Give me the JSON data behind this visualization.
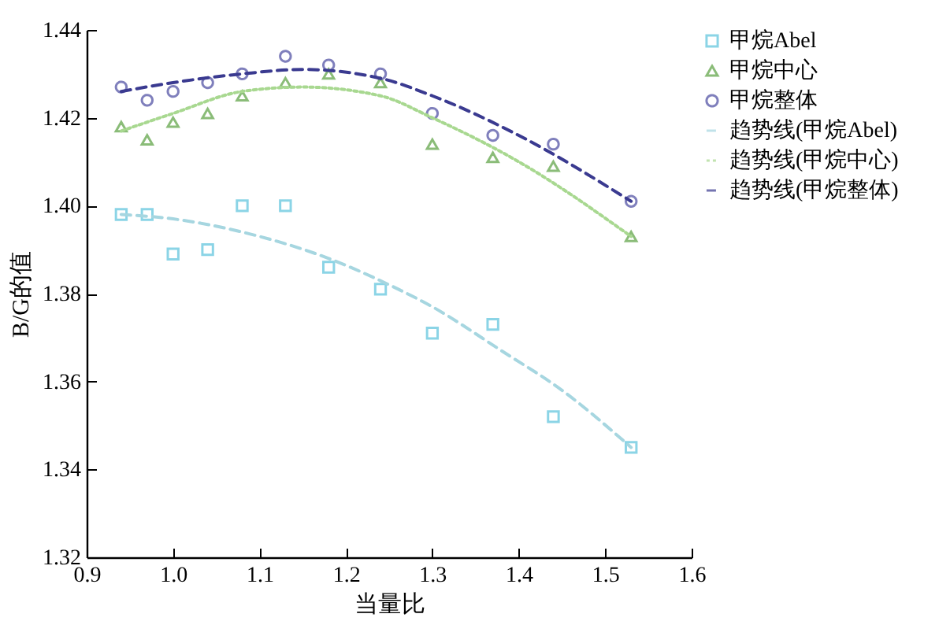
{
  "chart_data": {
    "type": "scatter",
    "xlabel": "当量比",
    "ylabel": "B/G的值",
    "xlim": [
      0.9,
      1.6
    ],
    "ylim": [
      1.32,
      1.44
    ],
    "xticks": [
      0.9,
      {
        "value": 1,
        "label": "1.0"
      },
      1.1,
      1.2,
      1.3,
      1.4,
      1.5,
      1.6
    ],
    "yticks": [
      1.32,
      1.34,
      1.36,
      1.38,
      {
        "value": 1.4,
        "label": "1.40"
      },
      1.42,
      1.44
    ],
    "grid": false,
    "legend": "right",
    "series": [
      {
        "name": "甲烷Abel",
        "type": "scatter",
        "marker": "square",
        "color": "#5bc3dc",
        "x": [
          0.94,
          0.97,
          1.0,
          1.04,
          1.08,
          1.13,
          1.18,
          1.24,
          1.3,
          1.37,
          1.44,
          1.53
        ],
        "values": [
          1.398,
          1.398,
          1.389,
          1.39,
          1.4,
          1.4,
          1.386,
          1.381,
          1.371,
          1.373,
          1.352,
          1.345
        ]
      },
      {
        "name": "甲烷中心",
        "type": "scatter",
        "marker": "triangle",
        "color": "#5aa040",
        "x": [
          0.94,
          0.97,
          1.0,
          1.04,
          1.08,
          1.13,
          1.18,
          1.24,
          1.3,
          1.37,
          1.44,
          1.53
        ],
        "values": [
          1.418,
          1.415,
          1.419,
          1.421,
          1.425,
          1.428,
          1.43,
          1.428,
          1.414,
          1.411,
          1.409,
          1.393
        ]
      },
      {
        "name": "甲烷整体",
        "type": "scatter",
        "marker": "circle",
        "color": "#4a4aa0",
        "x": [
          0.94,
          0.97,
          1.0,
          1.04,
          1.08,
          1.13,
          1.18,
          1.24,
          1.3,
          1.37,
          1.44,
          1.53
        ],
        "values": [
          1.427,
          1.424,
          1.426,
          1.428,
          1.43,
          1.434,
          1.432,
          1.43,
          1.421,
          1.416,
          1.414,
          1.401
        ]
      },
      {
        "name": "趋势线(甲烷Abel)",
        "type": "line",
        "marker": "none",
        "line_style": "dashed",
        "color": "#a6d6e0",
        "x": [
          0.94,
          1.0,
          1.08,
          1.18,
          1.25,
          1.3,
          1.38,
          1.45,
          1.53
        ],
        "values": [
          1.398,
          1.397,
          1.394,
          1.388,
          1.382,
          1.377,
          1.367,
          1.358,
          1.345
        ]
      },
      {
        "name": "趋势线(甲烷中心)",
        "type": "line",
        "marker": "none",
        "line_style": "dotted",
        "color": "#a8d890",
        "x": [
          0.94,
          1.0,
          1.08,
          1.15,
          1.24,
          1.3,
          1.4,
          1.53
        ],
        "values": [
          1.417,
          1.421,
          1.426,
          1.427,
          1.425,
          1.42,
          1.41,
          1.393
        ]
      },
      {
        "name": "趋势线(甲烷整体)",
        "type": "line",
        "marker": "none",
        "line_style": "dashed",
        "color": "#3a3a90",
        "x": [
          0.94,
          1.0,
          1.08,
          1.15,
          1.24,
          1.3,
          1.4,
          1.53
        ],
        "values": [
          1.426,
          1.428,
          1.43,
          1.431,
          1.429,
          1.425,
          1.416,
          1.401
        ]
      }
    ]
  }
}
